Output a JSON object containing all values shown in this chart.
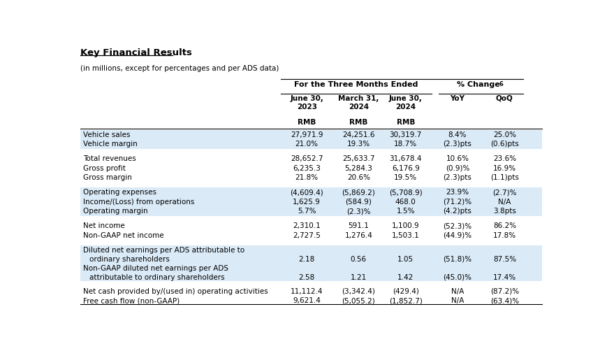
{
  "title": "Key Financial Results",
  "subtitle": "(in millions, except for percentages and per ADS data)",
  "header_group1": "For the Three Months Ended",
  "col_headers": [
    "June 30,\n2023",
    "March 31,\n2024",
    "June 30,\n2024",
    "YoY",
    "QoQ"
  ],
  "rows": [
    {
      "label": "Vehicle sales",
      "vals": [
        "27,971.9",
        "24,251.6",
        "30,319.7",
        "8.4%",
        "25.0%"
      ],
      "shaded": true
    },
    {
      "label": "Vehicle margin",
      "vals": [
        "21.0%",
        "19.3%",
        "18.7%",
        "(2.3)pts",
        "(0.6)pts"
      ],
      "shaded": true
    },
    {
      "label": "",
      "vals": [
        "",
        "",
        "",
        "",
        ""
      ],
      "shaded": false
    },
    {
      "label": "Total revenues",
      "vals": [
        "28,652.7",
        "25,633.7",
        "31,678.4",
        "10.6%",
        "23.6%"
      ],
      "shaded": false
    },
    {
      "label": "Gross profit",
      "vals": [
        "6,235.3",
        "5,284.3",
        "6,176.9",
        "(0.9)%",
        "16.9%"
      ],
      "shaded": false
    },
    {
      "label": "Gross margin",
      "vals": [
        "21.8%",
        "20.6%",
        "19.5%",
        "(2.3)pts",
        "(1.1)pts"
      ],
      "shaded": false
    },
    {
      "label": "",
      "vals": [
        "",
        "",
        "",
        "",
        ""
      ],
      "shaded": false
    },
    {
      "label": "Operating expenses",
      "vals": [
        "(4,609.4)",
        "(5,869.2)",
        "(5,708.9)",
        "23.9%",
        "(2.7)%"
      ],
      "shaded": true
    },
    {
      "label": "Income/(Loss) from operations",
      "vals": [
        "1,625.9",
        "(584.9)",
        "468.0",
        "(71.2)%",
        "N/A"
      ],
      "shaded": true
    },
    {
      "label": "Operating margin",
      "vals": [
        "5.7%",
        "(2.3)%",
        "1.5%",
        "(4.2)pts",
        "3.8pts"
      ],
      "shaded": true
    },
    {
      "label": "",
      "vals": [
        "",
        "",
        "",
        "",
        ""
      ],
      "shaded": false
    },
    {
      "label": "Net income",
      "vals": [
        "2,310.1",
        "591.1",
        "1,100.9",
        "(52.3)%",
        "86.2%"
      ],
      "shaded": false
    },
    {
      "label": "Non-GAAP net income",
      "vals": [
        "2,727.5",
        "1,276.4",
        "1,503.1",
        "(44.9)%",
        "17.8%"
      ],
      "shaded": false
    },
    {
      "label": "",
      "vals": [
        "",
        "",
        "",
        "",
        ""
      ],
      "shaded": false
    },
    {
      "label": "Diluted net earnings per ADS attributable to\nordinary shareholders",
      "vals": [
        "2.18",
        "0.56",
        "1.05",
        "(51.8)%",
        "87.5%"
      ],
      "shaded": true
    },
    {
      "label": "Non-GAAP diluted net earnings per ADS\nattributable to ordinary shareholders",
      "vals": [
        "2.58",
        "1.21",
        "1.42",
        "(45.0)%",
        "17.4%"
      ],
      "shaded": true
    },
    {
      "label": "",
      "vals": [
        "",
        "",
        "",
        "",
        ""
      ],
      "shaded": false
    },
    {
      "label": "Net cash provided by/(used in) operating activities",
      "vals": [
        "11,112.4",
        "(3,342.4)",
        "(429.4)",
        "N/A",
        "(87.2)%"
      ],
      "shaded": false
    },
    {
      "label": "Free cash flow (non-GAAP)",
      "vals": [
        "9,621.4",
        "(5,055.2)",
        "(1,852.7)",
        "N/A",
        "(63.4)%"
      ],
      "shaded": false
    }
  ],
  "shaded_color": "#daeaf7",
  "bg_color": "#ffffff",
  "text_color": "#000000",
  "font_size": 7.5,
  "header_font_size": 8.0
}
